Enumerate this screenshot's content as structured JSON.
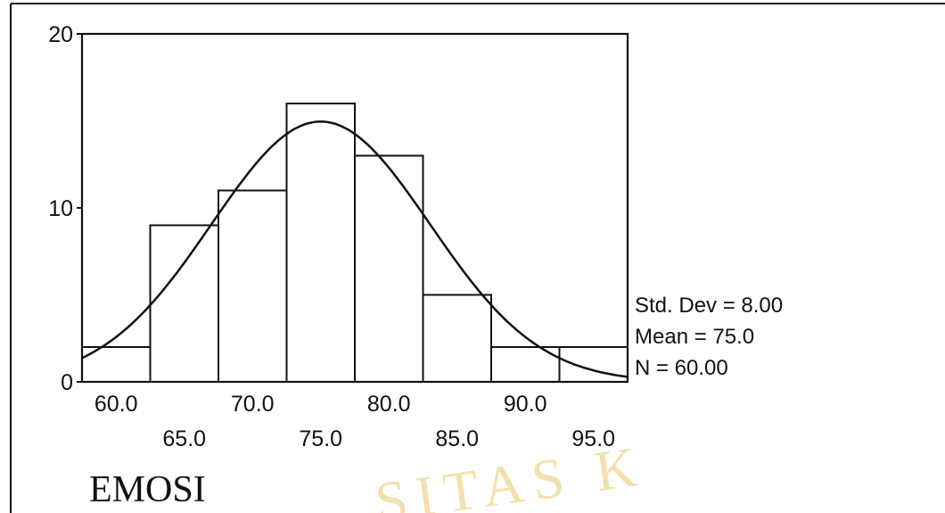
{
  "colors": {
    "background": "#ffffff",
    "ink": "#111111",
    "watermark": "#e9c96a"
  },
  "watermark_text": "SITAS  K",
  "chart_data": {
    "type": "bar",
    "subtype": "histogram-with-normal-curve",
    "variable_label": "EMOSI",
    "xlabel": "EMOSI",
    "ylabel": "",
    "title": "",
    "xlim": [
      57.5,
      97.5
    ],
    "ylim": [
      0,
      20
    ],
    "bin_width": 5,
    "bins": [
      {
        "center": 60,
        "count": 2
      },
      {
        "center": 65,
        "count": 9
      },
      {
        "center": 70,
        "count": 11
      },
      {
        "center": 75,
        "count": 16
      },
      {
        "center": 80,
        "count": 13
      },
      {
        "center": 85,
        "count": 5
      },
      {
        "center": 90,
        "count": 2
      },
      {
        "center": 95,
        "count": 2
      }
    ],
    "x_tick_labels_upper": [
      "60.0",
      "70.0",
      "80.0",
      "90.0"
    ],
    "x_tick_labels_lower": [
      "65.0",
      "75.0",
      "85.0",
      "95.0"
    ],
    "y_ticks": [
      "0",
      "10",
      "20"
    ],
    "normal_curve": {
      "mean": 75.0,
      "std": 8.0,
      "n": 60
    },
    "stats": {
      "std_dev": "Std. Dev = 8.00",
      "mean": "Mean = 75.0",
      "n": "N = 60.00"
    },
    "grid": false,
    "legend": "none"
  }
}
